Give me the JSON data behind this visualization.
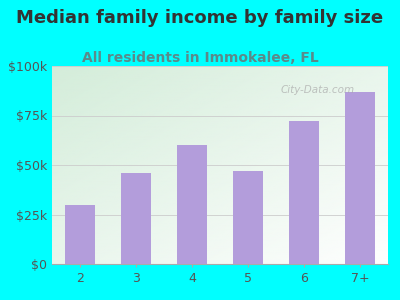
{
  "title": "Median family income by family size",
  "subtitle": "All residents in Immokalee, FL",
  "categories": [
    "2",
    "3",
    "4",
    "5",
    "6",
    "7+"
  ],
  "values": [
    30000,
    46000,
    60000,
    47000,
    72000,
    87000
  ],
  "bar_color": "#b39ddb",
  "background_color_outer": "#00ffff",
  "plot_bg_topleft": "#d4edda",
  "plot_bg_bottomright": "#ffffff",
  "title_color": "#333333",
  "subtitle_color": "#5a8a8a",
  "tick_color": "#555555",
  "grid_color": "#cccccc",
  "ylim": [
    0,
    100000
  ],
  "yticks": [
    0,
    25000,
    50000,
    75000,
    100000
  ],
  "ytick_labels": [
    "$0",
    "$25k",
    "$50k",
    "$75k",
    "$100k"
  ],
  "title_fontsize": 13,
  "subtitle_fontsize": 10,
  "tick_fontsize": 9,
  "watermark_text": "City-Data.com",
  "bar_width": 0.55
}
